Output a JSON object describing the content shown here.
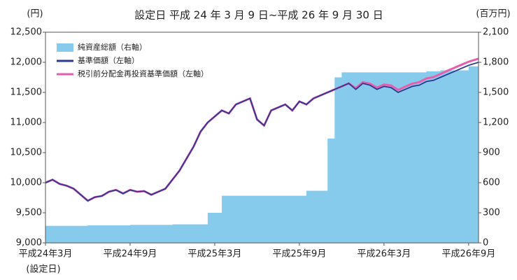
{
  "chart_data": {
    "type": "line",
    "title": "設定日 平成 24 年 3 月 9 日~平成 26 年 9 月 30 日",
    "y_unit": "(円)",
    "y2_unit": "(百万円)",
    "x_note": "(設定日)",
    "xlim": [
      0,
      30.7
    ],
    "xticks": [
      {
        "value": 0,
        "label": "平成24年3月"
      },
      {
        "value": 6,
        "label": "平成24年9月"
      },
      {
        "value": 12,
        "label": "平成25年3月"
      },
      {
        "value": 18,
        "label": "平成25年9月"
      },
      {
        "value": 24,
        "label": "平成26年3月"
      },
      {
        "value": 30,
        "label": "平成26年9月"
      }
    ],
    "ylim": [
      9000,
      12500
    ],
    "yticks": [
      {
        "value": 9000,
        "label": "9,000"
      },
      {
        "value": 9500,
        "label": "9,500"
      },
      {
        "value": 10000,
        "label": "10,000"
      },
      {
        "value": 10500,
        "label": "10,500"
      },
      {
        "value": 11000,
        "label": "11,000"
      },
      {
        "value": 11500,
        "label": "11,500"
      },
      {
        "value": 12000,
        "label": "12,000"
      },
      {
        "value": 12500,
        "label": "12,500"
      }
    ],
    "y2lim": [
      0,
      2100
    ],
    "y2ticks": [
      0,
      300,
      600,
      900,
      {
        "value": 1200,
        "label": "1,200"
      },
      {
        "value": 1500,
        "label": "1,500"
      },
      {
        "value": 1800,
        "label": "1,800"
      },
      {
        "value": 2100,
        "label": "2,100"
      }
    ],
    "x": [
      0,
      0.5,
      1,
      1.5,
      2,
      2.5,
      3,
      3.5,
      4,
      4.5,
      5,
      5.5,
      6,
      6.5,
      7,
      7.5,
      8,
      8.5,
      9,
      9.5,
      10,
      10.5,
      11,
      11.5,
      12,
      12.5,
      13,
      13.5,
      14,
      14.5,
      15,
      15.5,
      16,
      16.5,
      17,
      17.5,
      18,
      18.5,
      19,
      19.5,
      20,
      20.5,
      21,
      21.5,
      22,
      22.5,
      23,
      23.5,
      24,
      24.5,
      25,
      25.5,
      26,
      26.5,
      27,
      27.5,
      28,
      28.5,
      29,
      29.5,
      30,
      30.7
    ],
    "series": [
      {
        "name": "純資産総額（右軸）",
        "color": "#86cbec",
        "axis": "y2",
        "kind": "area",
        "x": [
          0,
          3,
          6,
          9,
          11.5,
          12.5,
          15,
          18.5,
          20,
          20.5,
          21,
          24,
          27,
          28,
          30,
          30.7
        ],
        "values": [
          170,
          175,
          180,
          185,
          300,
          470,
          470,
          520,
          1040,
          1650,
          1700,
          1700,
          1710,
          1720,
          1760,
          1770
        ]
      },
      {
        "name": "基準価額（左軸）",
        "color": "#2b3990",
        "kind": "line",
        "values": [
          10000,
          10050,
          9980,
          9950,
          9900,
          9800,
          9700,
          9760,
          9780,
          9850,
          9880,
          9820,
          9880,
          9850,
          9860,
          9800,
          9850,
          9900,
          10050,
          10200,
          10400,
          10600,
          10850,
          11000,
          11100,
          11200,
          11150,
          11300,
          11350,
          11400,
          11050,
          10950,
          11200,
          11250,
          11300,
          11200,
          11350,
          11300,
          11400,
          11450,
          11500,
          11550,
          11600,
          11650,
          11550,
          11650,
          11620,
          11550,
          11600,
          11580,
          11500,
          11550,
          11600,
          11620,
          11680,
          11700,
          11750,
          11800,
          11850,
          11900,
          11950,
          12000
        ]
      },
      {
        "name": "税引前分配金再投資基準価額（左軸）",
        "color": "#e65fae",
        "kind": "line",
        "values": [
          10000,
          10050,
          9980,
          9950,
          9900,
          9800,
          9700,
          9760,
          9780,
          9850,
          9880,
          9820,
          9880,
          9850,
          9860,
          9800,
          9850,
          9900,
          10050,
          10200,
          10400,
          10600,
          10850,
          11000,
          11100,
          11200,
          11150,
          11300,
          11350,
          11400,
          11050,
          10950,
          11200,
          11250,
          11300,
          11200,
          11350,
          11300,
          11400,
          11450,
          11500,
          11550,
          11600,
          11650,
          11570,
          11670,
          11645,
          11580,
          11630,
          11615,
          11540,
          11595,
          11645,
          11670,
          11730,
          11755,
          11805,
          11860,
          11910,
          11960,
          12010,
          12060
        ]
      }
    ]
  }
}
